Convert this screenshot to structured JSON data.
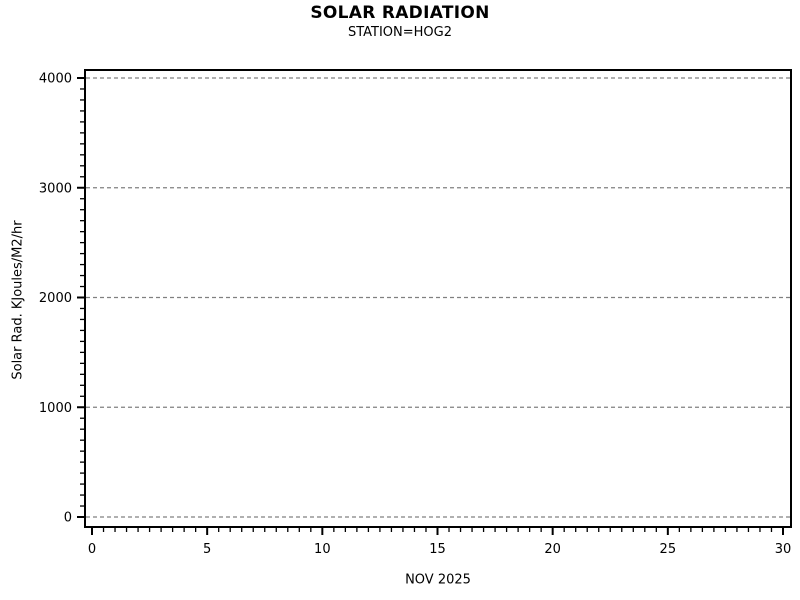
{
  "chart_data": {
    "type": "line",
    "title": "SOLAR RADIATION",
    "subtitle": "STATION=HOG2",
    "xlabel": "NOV 2025",
    "ylabel": "Solar Rad. KJoules/M2/hr",
    "xlim": [
      0,
      30
    ],
    "ylim": [
      0,
      4000
    ],
    "x_ticks": [
      0,
      5,
      10,
      15,
      20,
      25,
      30
    ],
    "y_ticks": [
      0,
      1000,
      2000,
      3000,
      4000
    ],
    "x_minor_ticks_between_majors": 9,
    "y_minor_ticks_between_majors": 9,
    "grid": "horizontal-dashed-at-y-majors",
    "legend": "none",
    "series": [],
    "colors": {
      "axis": "#000000",
      "gridline": "#808080",
      "text": "#000000",
      "background": "#ffffff"
    }
  }
}
